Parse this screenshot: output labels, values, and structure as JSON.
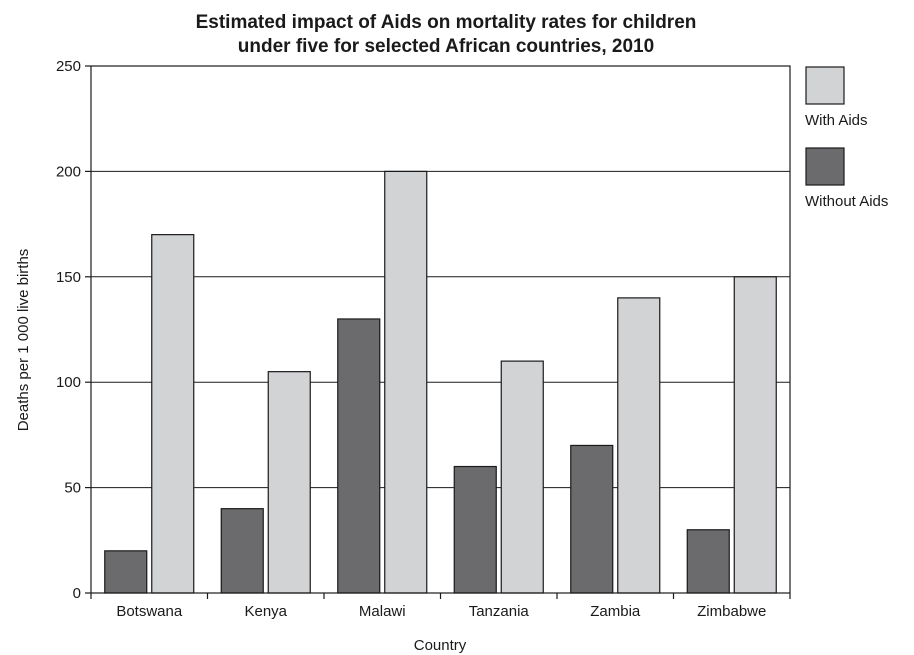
{
  "chart_data": {
    "type": "bar",
    "title": "Estimated impact of Aids on mortality rates for children under five for selected African countries, 2010",
    "title_lines": [
      "Estimated impact of Aids on mortality rates for children",
      "under five for selected African countries, 2010"
    ],
    "xlabel": "Country",
    "ylabel": "Deaths per 1 000 live births",
    "ylim": [
      0,
      250
    ],
    "yticks": [
      0,
      50,
      100,
      150,
      200,
      250
    ],
    "ytick_labels": [
      "0",
      "50",
      "100",
      "150",
      "200",
      "250"
    ],
    "grid": true,
    "legend_position": "right",
    "categories": [
      "Botswana",
      "Kenya",
      "Malawi",
      "Tanzania",
      "Zambia",
      "Zimbabwe"
    ],
    "series": [
      {
        "name": "Without Aids",
        "color": "#6b6b6e",
        "values": [
          20,
          40,
          130,
          60,
          70,
          30
        ]
      },
      {
        "name": "With Aids",
        "color": "#d2d3d5",
        "values": [
          170,
          105,
          200,
          110,
          140,
          150
        ]
      }
    ],
    "legend_order": [
      1,
      0
    ]
  }
}
